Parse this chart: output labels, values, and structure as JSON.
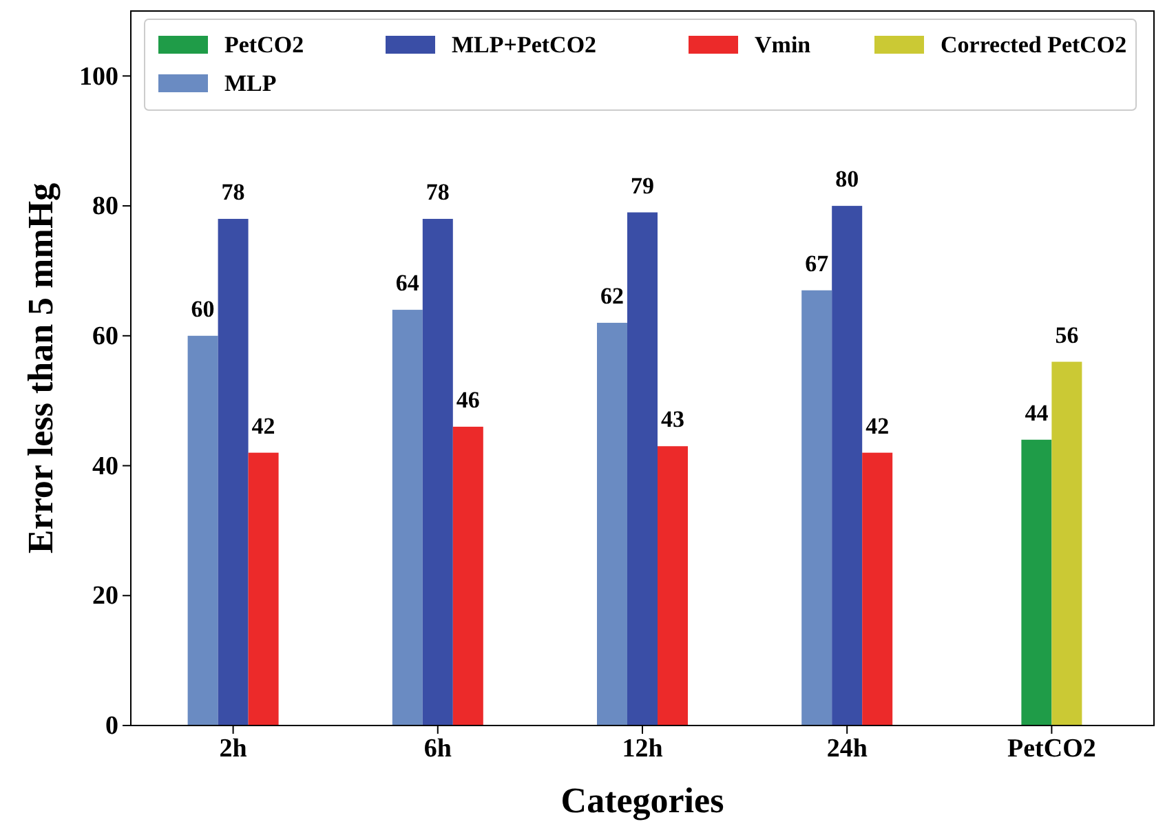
{
  "chart_data": {
    "type": "bar",
    "xlabel": "Categories",
    "ylabel": "Error less than 5 mmHg",
    "categories": [
      "2h",
      "6h",
      "12h",
      "24h",
      "PetCO2"
    ],
    "series": [
      {
        "name": "PetCO2",
        "color": "#1f9c48",
        "values": [
          null,
          null,
          null,
          null,
          44
        ]
      },
      {
        "name": "MLP",
        "color": "#6a8bc2",
        "values": [
          60,
          64,
          62,
          67,
          null
        ]
      },
      {
        "name": "MLP+PetCO2",
        "color": "#3a4ea6",
        "values": [
          78,
          78,
          79,
          80,
          null
        ]
      },
      {
        "name": "Vmin",
        "color": "#ec2a2a",
        "values": [
          42,
          46,
          43,
          42,
          null
        ]
      },
      {
        "name": "Corrected PetCO2",
        "color": "#cbc934",
        "values": [
          null,
          null,
          null,
          null,
          56
        ]
      }
    ],
    "ylim": [
      0,
      110
    ],
    "yticks": [
      0,
      20,
      40,
      60,
      80,
      100
    ],
    "grid": false,
    "legend": "top",
    "data_labels": true
  }
}
